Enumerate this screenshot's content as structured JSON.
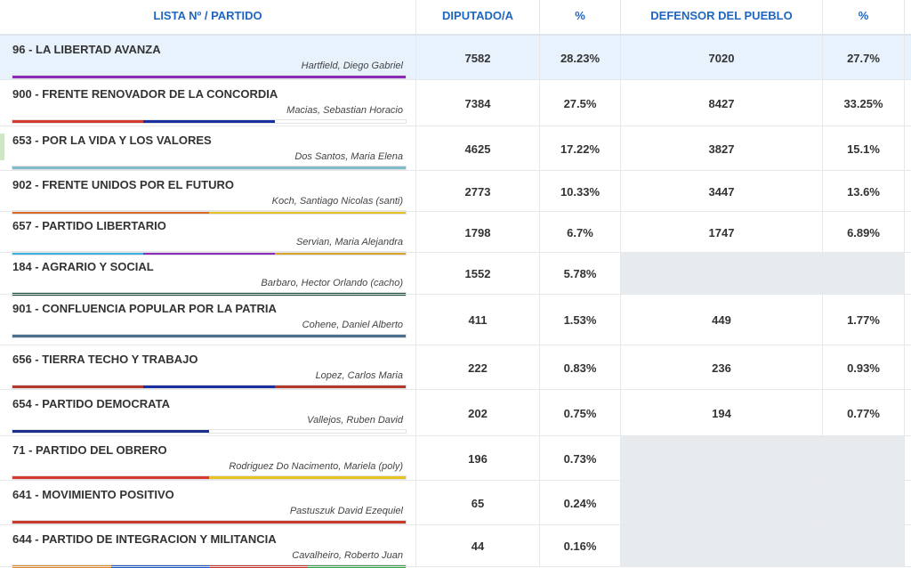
{
  "header": {
    "col_party": "LISTA Nº / PARTIDO",
    "col_deputy": "DIPUTADO/A",
    "col_deputy_pct": "%",
    "col_defensor": "DEFENSOR DEL PUEBLO",
    "col_defensor_pct": "%"
  },
  "colors": {
    "header_text": "#1f66c1",
    "highlight_row": "#e8f2fd",
    "empty_cell": "#e8ebee"
  },
  "rows": [
    {
      "name": "96 - LA LIBERTAD AVANZA",
      "candidate": "Hartfield, Diego Gabriel",
      "dip": "7582",
      "dip_pct": "28.23%",
      "def": "7020",
      "def_pct": "27.7%",
      "colors": [
        "#8a2bb9"
      ],
      "highlight": true
    },
    {
      "name": "900 - FRENTE RENOVADOR DE LA CONCORDIA",
      "candidate": "Macias, Sebastian Horacio",
      "dip": "7384",
      "dip_pct": "27.5%",
      "def": "8427",
      "def_pct": "33.25%",
      "colors": [
        "#d63a2f",
        "#1a2fa0",
        "#ffffff"
      ]
    },
    {
      "name": "653 - POR LA VIDA Y LOS VALORES",
      "candidate": "Dos Santos, Maria Elena",
      "dip": "4625",
      "dip_pct": "17.22%",
      "def": "3827",
      "def_pct": "15.1%",
      "colors": [
        "#7fbcc8"
      ]
    },
    {
      "name": "902 - FRENTE UNIDOS POR EL FUTURO",
      "candidate": "Koch, Santiago Nicolas (santi)",
      "dip": "2773",
      "dip_pct": "10.33%",
      "def": "3447",
      "def_pct": "13.6%",
      "colors": [
        "#d86a2a",
        "#e4c21f"
      ]
    },
    {
      "name": "657 - PARTIDO LIBERTARIO",
      "candidate": "Servian, Maria Alejandra",
      "dip": "1798",
      "dip_pct": "6.7%",
      "def": "1747",
      "def_pct": "6.89%",
      "colors": [
        "#3ab3e0",
        "#8a2bb9",
        "#d8a52a"
      ]
    },
    {
      "name": "184 - AGRARIO Y SOCIAL",
      "candidate": "Barbaro, Hector Orlando (cacho)",
      "dip": "1552",
      "dip_pct": "5.78%",
      "def": "",
      "def_pct": "",
      "colors": [
        "#174a3a"
      ]
    },
    {
      "name": "901 - CONFLUENCIA POPULAR POR LA PATRIA",
      "candidate": "Cohene, Daniel Alberto",
      "dip": "411",
      "dip_pct": "1.53%",
      "def": "449",
      "def_pct": "1.77%",
      "colors": [
        "#4c6f8f"
      ]
    },
    {
      "name": "656 - TIERRA TECHO Y TRABAJO",
      "candidate": "Lopez, Carlos Maria",
      "dip": "222",
      "dip_pct": "0.83%",
      "def": "236",
      "def_pct": "0.93%",
      "colors": [
        "#b33a2a",
        "#1a2fa0",
        "#b33a2a"
      ]
    },
    {
      "name": "654 - PARTIDO DEMOCRATA",
      "candidate": "Vallejos, Ruben David",
      "dip": "202",
      "dip_pct": "0.75%",
      "def": "194",
      "def_pct": "0.77%",
      "colors": [
        "#1a2f8a",
        "#ffffff"
      ]
    },
    {
      "name": "71 - PARTIDO DEL OBRERO",
      "candidate": "Rodriguez Do Nacimento, Mariela (poly)",
      "dip": "196",
      "dip_pct": "0.73%",
      "def": "",
      "def_pct": "",
      "colors": [
        "#d63a2f",
        "#e4c21f"
      ]
    },
    {
      "name": "641 - MOVIMIENTO POSITIVO",
      "candidate": "Pastuszuk David Ezequiel",
      "dip": "65",
      "dip_pct": "0.24%",
      "def": "",
      "def_pct": "",
      "colors": [
        "#c83a2a"
      ]
    },
    {
      "name": "644 - PARTIDO DE INTEGRACION Y MILITANCIA",
      "candidate": "Cavalheiro, Roberto Juan",
      "dip": "44",
      "dip_pct": "0.16%",
      "def": "",
      "def_pct": "",
      "colors": [
        "#e08a2a",
        "#1a55c8",
        "#c8352a",
        "#3aa04a"
      ]
    }
  ]
}
